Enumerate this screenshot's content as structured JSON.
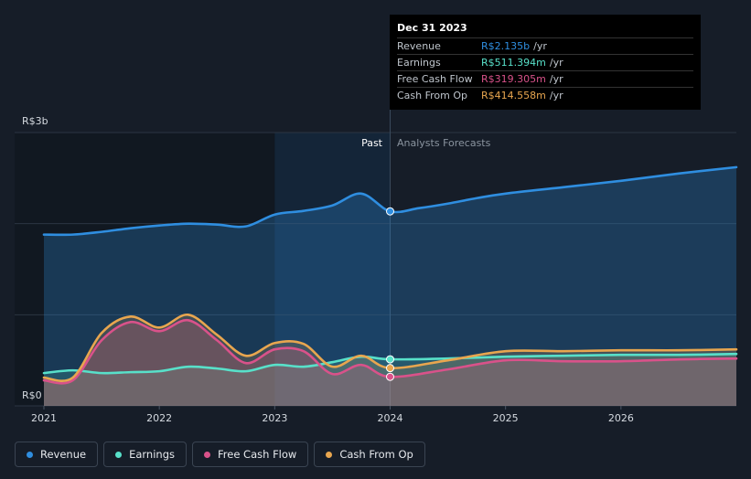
{
  "tooltip": {
    "date": "Dec 31 2023",
    "rows": [
      {
        "label": "Revenue",
        "value": "R$2.135b",
        "unit": "/yr",
        "color": "#2f8ee0"
      },
      {
        "label": "Earnings",
        "value": "R$511.394m",
        "unit": "/yr",
        "color": "#58e0c9"
      },
      {
        "label": "Free Cash Flow",
        "value": "R$319.305m",
        "unit": "/yr",
        "color": "#d9528a"
      },
      {
        "label": "Cash From Op",
        "value": "R$414.558m",
        "unit": "/yr",
        "color": "#e8a64f"
      }
    ]
  },
  "legend": [
    {
      "label": "Revenue",
      "color": "#2f8ee0"
    },
    {
      "label": "Earnings",
      "color": "#58e0c9"
    },
    {
      "label": "Free Cash Flow",
      "color": "#d9528a"
    },
    {
      "label": "Cash From Op",
      "color": "#e8a64f"
    }
  ],
  "chart_data": {
    "type": "line",
    "title": "",
    "xlabel": "",
    "ylabel": "",
    "y_top_label": "R$3b",
    "y_bottom_label": "R$0",
    "past_label": "Past",
    "forecast_label": "Analysts Forecasts",
    "ylim": [
      0,
      3.0
    ],
    "xlim": [
      2021.0,
      2027.0
    ],
    "x_ticks": [
      2021,
      2022,
      2023,
      2024,
      2025,
      2026
    ],
    "x_tick_labels": [
      "2021",
      "2022",
      "2023",
      "2024",
      "2025",
      "2026"
    ],
    "divider_x": 2024.0,
    "highlight_range": [
      2023.0,
      2024.0
    ],
    "series": [
      {
        "name": "Revenue",
        "color": "#2f8ee0",
        "x": [
          2021.0,
          2021.25,
          2021.5,
          2021.75,
          2022.0,
          2022.25,
          2022.5,
          2022.75,
          2023.0,
          2023.25,
          2023.5,
          2023.75,
          2024.0,
          2024.25,
          2024.5,
          2024.75,
          2025.0,
          2025.5,
          2026.0,
          2026.5,
          2027.0
        ],
        "y": [
          1.88,
          1.88,
          1.91,
          1.95,
          1.98,
          2.0,
          1.99,
          1.97,
          2.1,
          2.14,
          2.2,
          2.33,
          2.135,
          2.17,
          2.22,
          2.28,
          2.33,
          2.4,
          2.47,
          2.55,
          2.62
        ]
      },
      {
        "name": "Earnings",
        "color": "#58e0c9",
        "x": [
          2021.0,
          2021.25,
          2021.5,
          2021.75,
          2022.0,
          2022.25,
          2022.5,
          2022.75,
          2023.0,
          2023.25,
          2023.5,
          2023.75,
          2024.0,
          2024.5,
          2025.0,
          2025.5,
          2026.0,
          2026.5,
          2027.0
        ],
        "y": [
          0.36,
          0.39,
          0.36,
          0.37,
          0.38,
          0.43,
          0.41,
          0.38,
          0.45,
          0.43,
          0.48,
          0.54,
          0.511,
          0.52,
          0.54,
          0.55,
          0.56,
          0.56,
          0.57
        ]
      },
      {
        "name": "Free Cash Flow",
        "color": "#d9528a",
        "x": [
          2021.0,
          2021.25,
          2021.5,
          2021.75,
          2022.0,
          2022.25,
          2022.5,
          2022.75,
          2023.0,
          2023.25,
          2023.5,
          2023.75,
          2024.0,
          2024.5,
          2025.0,
          2025.5,
          2026.0,
          2026.5,
          2027.0
        ],
        "y": [
          0.28,
          0.28,
          0.72,
          0.92,
          0.82,
          0.94,
          0.72,
          0.47,
          0.62,
          0.6,
          0.35,
          0.45,
          0.319,
          0.4,
          0.5,
          0.49,
          0.49,
          0.51,
          0.52
        ]
      },
      {
        "name": "Cash From Op",
        "color": "#e8a64f",
        "x": [
          2021.0,
          2021.25,
          2021.5,
          2021.75,
          2022.0,
          2022.25,
          2022.5,
          2022.75,
          2023.0,
          2023.25,
          2023.5,
          2023.75,
          2024.0,
          2024.5,
          2025.0,
          2025.5,
          2026.0,
          2026.5,
          2027.0
        ],
        "y": [
          0.31,
          0.31,
          0.8,
          0.98,
          0.86,
          1.0,
          0.78,
          0.55,
          0.69,
          0.68,
          0.43,
          0.55,
          0.415,
          0.5,
          0.6,
          0.6,
          0.61,
          0.61,
          0.62
        ]
      }
    ],
    "highlight_points_x": 2024.0
  }
}
